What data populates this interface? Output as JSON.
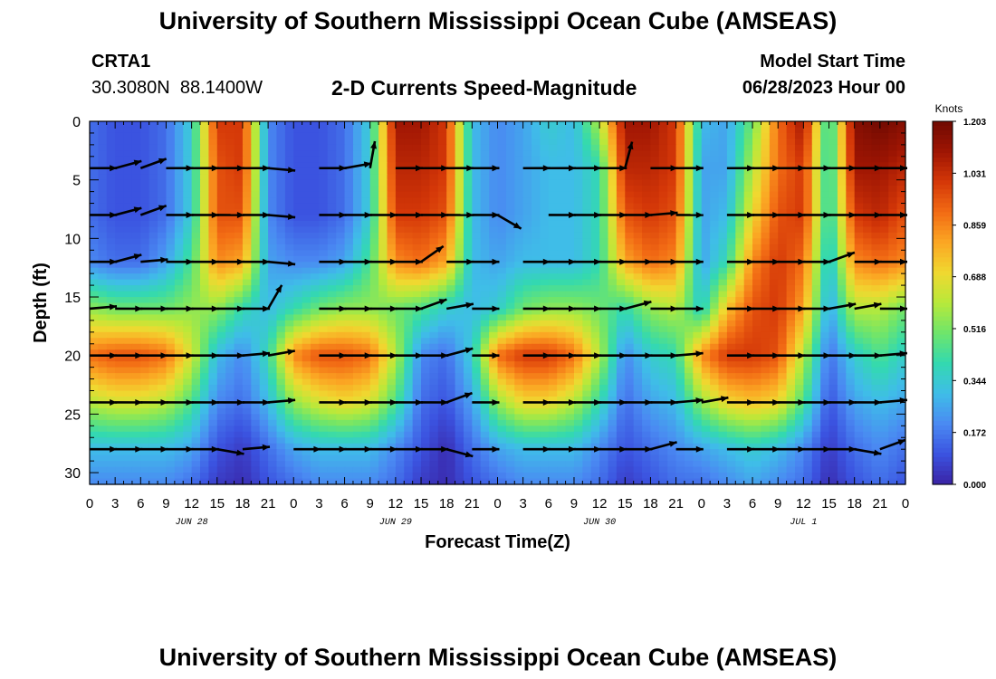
{
  "header": {
    "title": "University of Southern Mississippi Ocean Cube (AMSEAS)",
    "station_id": "CRTA1",
    "station_coords": "30.3080N  88.1400W",
    "subtitle": "2-D Currents Speed-Magnitude",
    "model_start_label": "Model Start Time",
    "model_start_value": "06/28/2023 Hour 00"
  },
  "footer": {
    "title": "University of Southern Mississippi Ocean Cube (AMSEAS)"
  },
  "colors": {
    "palette": [
      "#3a23a5",
      "#3b53e0",
      "#4a8af2",
      "#3fbde8",
      "#33d9b0",
      "#6ee56b",
      "#b8e93a",
      "#f0d830",
      "#fba623",
      "#f26b14",
      "#d43708",
      "#9e1503",
      "#6f0a02"
    ]
  },
  "chart_data": {
    "type": "heatmap",
    "title": "2-D Currents Speed-Magnitude",
    "xlabel": "Forecast Time(Z)",
    "ylabel": "Depth (ft)",
    "x_ticks": [
      "0",
      "3",
      "6",
      "9",
      "12",
      "15",
      "18",
      "21",
      "0",
      "3",
      "6",
      "9",
      "12",
      "15",
      "18",
      "21",
      "0",
      "3",
      "6",
      "9",
      "12",
      "15",
      "18",
      "21",
      "0",
      "3",
      "6",
      "9",
      "12",
      "15",
      "18",
      "21",
      "0"
    ],
    "x_tick_hours": [
      0,
      3,
      6,
      9,
      12,
      15,
      18,
      21,
      24,
      27,
      30,
      33,
      36,
      39,
      42,
      45,
      48,
      51,
      54,
      57,
      60,
      63,
      66,
      69,
      72,
      75,
      78,
      81,
      84,
      87,
      90,
      93,
      96
    ],
    "date_labels": [
      {
        "text": "JUN 28",
        "hour": 12
      },
      {
        "text": "JUN 29",
        "hour": 36
      },
      {
        "text": "JUN 30",
        "hour": 60
      },
      {
        "text": "JUL 1",
        "hour": 84
      }
    ],
    "xlim": [
      0,
      96
    ],
    "y_ticks": [
      "0",
      "5",
      "10",
      "15",
      "20",
      "25",
      "30"
    ],
    "y_tick_values": [
      0,
      5,
      10,
      15,
      20,
      25,
      30
    ],
    "ylim": [
      0,
      31
    ],
    "y_inverted": true,
    "colorbar": {
      "title": "Knots",
      "ticks": [
        "1.203",
        "1.031",
        "0.859",
        "0.688",
        "0.516",
        "0.344",
        "0.172",
        "0.000"
      ],
      "min": 0.0,
      "max": 1.203
    },
    "speed_field": {
      "hours": [
        0,
        3,
        6,
        9,
        12,
        15,
        18,
        21,
        24,
        27,
        30,
        33,
        36,
        39,
        42,
        45,
        48,
        51,
        54,
        57,
        60,
        63,
        66,
        69,
        72,
        75,
        78,
        81,
        84,
        87,
        90,
        93,
        96
      ],
      "depths": [
        0,
        4,
        8,
        12,
        16,
        20,
        24,
        28,
        31
      ],
      "values": [
        [
          0.15,
          0.1,
          0.1,
          0.15,
          0.35,
          1.0,
          1.0,
          0.2,
          0.1,
          0.1,
          0.15,
          0.35,
          1.1,
          1.1,
          1.0,
          0.3,
          0.2,
          0.25,
          0.35,
          0.3,
          0.6,
          1.1,
          1.1,
          1.0,
          0.3,
          0.25,
          0.5,
          0.9,
          1.1,
          0.35,
          1.15,
          1.2,
          1.15
        ],
        [
          0.15,
          0.1,
          0.1,
          0.15,
          0.35,
          0.95,
          1.0,
          0.2,
          0.1,
          0.1,
          0.15,
          0.35,
          1.05,
          1.05,
          1.0,
          0.3,
          0.2,
          0.25,
          0.3,
          0.3,
          0.4,
          1.05,
          1.05,
          1.0,
          0.25,
          0.25,
          0.6,
          0.9,
          1.0,
          0.35,
          1.1,
          1.1,
          1.05
        ],
        [
          0.15,
          0.1,
          0.1,
          0.15,
          0.35,
          0.95,
          0.95,
          0.2,
          0.1,
          0.1,
          0.15,
          0.35,
          1.0,
          1.0,
          0.95,
          0.3,
          0.2,
          0.25,
          0.3,
          0.3,
          0.4,
          0.95,
          1.0,
          0.95,
          0.25,
          0.3,
          0.7,
          0.95,
          1.0,
          0.35,
          1.0,
          1.05,
          0.95
        ],
        [
          0.2,
          0.15,
          0.15,
          0.25,
          0.45,
          0.85,
          0.8,
          0.25,
          0.2,
          0.2,
          0.25,
          0.45,
          0.85,
          0.9,
          0.8,
          0.3,
          0.25,
          0.3,
          0.3,
          0.3,
          0.4,
          0.8,
          0.9,
          0.85,
          0.25,
          0.4,
          0.85,
          1.0,
          0.9,
          0.3,
          0.85,
          0.9,
          0.85
        ],
        [
          0.55,
          0.5,
          0.5,
          0.5,
          0.55,
          0.55,
          0.4,
          0.3,
          0.4,
          0.5,
          0.55,
          0.55,
          0.5,
          0.45,
          0.35,
          0.3,
          0.35,
          0.5,
          0.55,
          0.55,
          0.5,
          0.4,
          0.55,
          0.6,
          0.35,
          0.75,
          0.95,
          1.0,
          0.8,
          0.25,
          0.6,
          0.6,
          0.5
        ],
        [
          0.9,
          0.95,
          0.95,
          0.9,
          0.65,
          0.3,
          0.2,
          0.4,
          0.85,
          0.95,
          0.95,
          0.9,
          0.6,
          0.2,
          0.15,
          0.35,
          0.9,
          1.0,
          1.0,
          0.9,
          0.6,
          0.2,
          0.35,
          0.4,
          0.85,
          1.0,
          1.0,
          0.95,
          0.6,
          0.15,
          0.35,
          0.45,
          0.35
        ],
        [
          0.6,
          0.65,
          0.65,
          0.6,
          0.45,
          0.2,
          0.15,
          0.3,
          0.55,
          0.65,
          0.7,
          0.65,
          0.45,
          0.15,
          0.1,
          0.25,
          0.55,
          0.7,
          0.7,
          0.6,
          0.4,
          0.15,
          0.25,
          0.3,
          0.55,
          0.7,
          0.75,
          0.7,
          0.45,
          0.1,
          0.25,
          0.3,
          0.25
        ],
        [
          0.3,
          0.3,
          0.3,
          0.3,
          0.25,
          0.1,
          0.05,
          0.15,
          0.25,
          0.3,
          0.3,
          0.3,
          0.2,
          0.1,
          0.02,
          0.15,
          0.25,
          0.3,
          0.3,
          0.3,
          0.2,
          0.1,
          0.15,
          0.2,
          0.25,
          0.3,
          0.35,
          0.3,
          0.2,
          0.05,
          0.15,
          0.2,
          0.15
        ],
        [
          0.2,
          0.2,
          0.2,
          0.2,
          0.15,
          0.05,
          0.02,
          0.1,
          0.15,
          0.2,
          0.2,
          0.2,
          0.15,
          0.05,
          0.02,
          0.1,
          0.15,
          0.2,
          0.2,
          0.2,
          0.15,
          0.05,
          0.1,
          0.15,
          0.15,
          0.2,
          0.25,
          0.2,
          0.15,
          0.02,
          0.1,
          0.15,
          0.1
        ]
      ]
    },
    "vector_rows": [
      {
        "depth": 4,
        "dir_deg": [
          0,
          15,
          20,
          0,
          0,
          0,
          0,
          -5,
          null,
          0,
          10,
          80,
          0,
          0,
          0,
          0,
          null,
          0,
          0,
          0,
          0,
          75,
          0,
          0,
          null,
          0,
          0,
          0,
          0,
          0,
          0,
          0,
          0
        ]
      },
      {
        "depth": 8,
        "dir_deg": [
          0,
          15,
          20,
          0,
          0,
          0,
          0,
          -5,
          null,
          0,
          0,
          0,
          0,
          0,
          0,
          0,
          -30,
          null,
          0,
          0,
          0,
          0,
          5,
          0,
          null,
          0,
          0,
          0,
          0,
          0,
          0,
          0,
          0
        ]
      },
      {
        "depth": 12,
        "dir_deg": [
          0,
          15,
          5,
          0,
          0,
          0,
          0,
          -5,
          null,
          0,
          0,
          0,
          0,
          35,
          0,
          0,
          null,
          0,
          0,
          0,
          0,
          0,
          0,
          0,
          null,
          0,
          0,
          0,
          0,
          20,
          0,
          0,
          -5
        ]
      },
      {
        "depth": 16,
        "dir_deg": [
          5,
          0,
          0,
          0,
          0,
          0,
          0,
          60,
          null,
          0,
          0,
          0,
          0,
          20,
          10,
          0,
          null,
          0,
          0,
          0,
          0,
          15,
          0,
          0,
          null,
          0,
          0,
          0,
          0,
          10,
          10,
          0,
          0
        ]
      },
      {
        "depth": 20,
        "dir_deg": [
          0,
          0,
          0,
          0,
          0,
          0,
          5,
          10,
          null,
          0,
          0,
          0,
          0,
          0,
          15,
          0,
          null,
          0,
          0,
          0,
          0,
          0,
          0,
          5,
          null,
          0,
          0,
          0,
          0,
          0,
          0,
          5,
          -5
        ]
      },
      {
        "depth": 24,
        "dir_deg": [
          0,
          0,
          0,
          0,
          0,
          0,
          0,
          5,
          null,
          0,
          0,
          0,
          0,
          0,
          20,
          0,
          null,
          0,
          0,
          0,
          0,
          0,
          0,
          5,
          10,
          0,
          0,
          0,
          0,
          0,
          0,
          5,
          -5
        ]
      },
      {
        "depth": 28,
        "dir_deg": [
          0,
          0,
          0,
          0,
          0,
          -10,
          5,
          null,
          0,
          0,
          0,
          0,
          0,
          0,
          -15,
          0,
          null,
          0,
          0,
          0,
          0,
          0,
          15,
          0,
          null,
          0,
          0,
          0,
          0,
          0,
          -10,
          20,
          null
        ]
      }
    ]
  }
}
